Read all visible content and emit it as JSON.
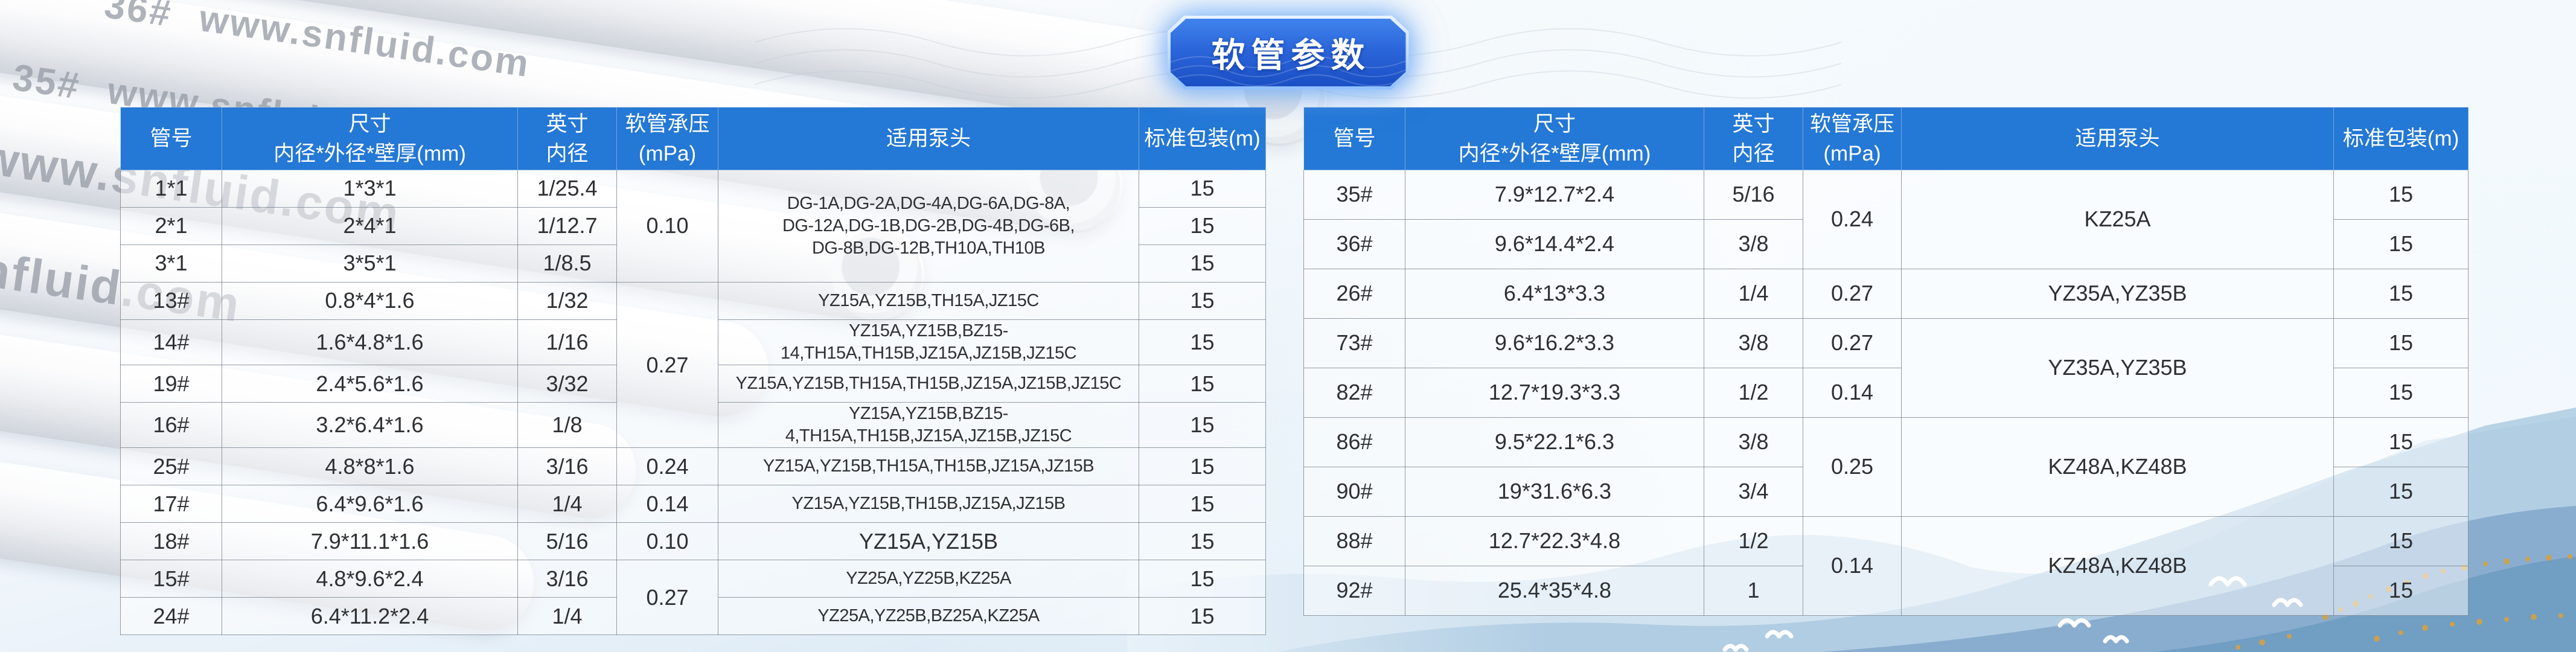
{
  "badge": {
    "label": "软管参数"
  },
  "watermarks": [
    "36#  www.snfluid.com",
    "35#  www.snfluid.com",
    "www.snfluid.com",
    "nfluid.com"
  ],
  "columns": [
    {
      "l1": "管号",
      "l2": ""
    },
    {
      "l1": "尺寸",
      "l2": "内径*外径*壁厚(mm)"
    },
    {
      "l1": "英寸",
      "l2": "内径"
    },
    {
      "l1": "软管承压",
      "l2": "(mPa)"
    },
    {
      "l1": "适用泵头",
      "l2": ""
    },
    {
      "l1": "标准包装(m)",
      "l2": ""
    }
  ],
  "left_table": {
    "rows": [
      [
        {
          "t": "1*1"
        },
        {
          "t": "1*3*1"
        },
        {
          "t": "1/25.4"
        },
        {
          "t": "0.10",
          "rs": 3
        },
        {
          "t": "DG-1A,DG-2A,DG-4A,DG-6A,DG-8A,\nDG-12A,DG-1B,DG-2B,DG-4B,DG-6B,\nDG-8B,DG-12B,TH10A,TH10B",
          "rs": 3
        },
        {
          "t": "15"
        }
      ],
      [
        {
          "t": "2*1"
        },
        {
          "t": "2*4*1"
        },
        {
          "t": "1/12.7"
        },
        {
          "t": "15"
        }
      ],
      [
        {
          "t": "3*1"
        },
        {
          "t": "3*5*1"
        },
        {
          "t": "1/8.5"
        },
        {
          "t": "15"
        }
      ],
      [
        {
          "t": "13#"
        },
        {
          "t": "0.8*4*1.6"
        },
        {
          "t": "1/32"
        },
        {
          "t": "0.27",
          "rs": 4
        },
        {
          "t": "YZ15A,YZ15B,TH15A,JZ15C"
        },
        {
          "t": "15"
        }
      ],
      [
        {
          "t": "14#"
        },
        {
          "t": "1.6*4.8*1.6"
        },
        {
          "t": "1/16"
        },
        {
          "t": "YZ15A,YZ15B,BZ15-14,TH15A,TH15B,JZ15A,JZ15B,JZ15C"
        },
        {
          "t": "15"
        }
      ],
      [
        {
          "t": "19#"
        },
        {
          "t": "2.4*5.6*1.6"
        },
        {
          "t": "3/32"
        },
        {
          "t": "YZ15A,YZ15B,TH15A,TH15B,JZ15A,JZ15B,JZ15C"
        },
        {
          "t": "15"
        }
      ],
      [
        {
          "t": "16#"
        },
        {
          "t": "3.2*6.4*1.6"
        },
        {
          "t": "1/8"
        },
        {
          "t": "YZ15A,YZ15B,BZ15-4,TH15A,TH15B,JZ15A,JZ15B,JZ15C"
        },
        {
          "t": "15"
        }
      ],
      [
        {
          "t": "25#"
        },
        {
          "t": "4.8*8*1.6"
        },
        {
          "t": "3/16"
        },
        {
          "t": "0.24"
        },
        {
          "t": "YZ15A,YZ15B,TH15A,TH15B,JZ15A,JZ15B"
        },
        {
          "t": "15"
        }
      ],
      [
        {
          "t": "17#"
        },
        {
          "t": "6.4*9.6*1.6"
        },
        {
          "t": "1/4"
        },
        {
          "t": "0.14"
        },
        {
          "t": "YZ15A,YZ15B,TH15B,JZ15A,JZ15B"
        },
        {
          "t": "15"
        }
      ],
      [
        {
          "t": "18#"
        },
        {
          "t": "7.9*11.1*1.6"
        },
        {
          "t": "5/16"
        },
        {
          "t": "0.10"
        },
        {
          "t": "YZ15A,YZ15B"
        },
        {
          "t": "15"
        }
      ],
      [
        {
          "t": "15#"
        },
        {
          "t": "4.8*9.6*2.4"
        },
        {
          "t": "3/16"
        },
        {
          "t": "0.27",
          "rs": 2
        },
        {
          "t": "YZ25A,YZ25B,KZ25A"
        },
        {
          "t": "15"
        }
      ],
      [
        {
          "t": "24#"
        },
        {
          "t": "6.4*11.2*2.4"
        },
        {
          "t": "1/4"
        },
        {
          "t": "YZ25A,YZ25B,BZ25A,KZ25A"
        },
        {
          "t": "15"
        }
      ]
    ]
  },
  "right_table": {
    "rows": [
      [
        {
          "t": "35#"
        },
        {
          "t": "7.9*12.7*2.4"
        },
        {
          "t": "5/16"
        },
        {
          "t": "0.24",
          "rs": 2
        },
        {
          "t": "KZ25A",
          "rs": 2
        },
        {
          "t": "15"
        }
      ],
      [
        {
          "t": "36#"
        },
        {
          "t": "9.6*14.4*2.4"
        },
        {
          "t": "3/8"
        },
        {
          "t": "15"
        }
      ],
      [
        {
          "t": "26#"
        },
        {
          "t": "6.4*13*3.3"
        },
        {
          "t": "1/4"
        },
        {
          "t": "0.27"
        },
        {
          "t": "YZ35A,YZ35B"
        },
        {
          "t": "15"
        }
      ],
      [
        {
          "t": "73#"
        },
        {
          "t": "9.6*16.2*3.3"
        },
        {
          "t": "3/8"
        },
        {
          "t": "0.27"
        },
        {
          "t": "YZ35A,YZ35B",
          "rs": 2
        },
        {
          "t": "15"
        }
      ],
      [
        {
          "t": "82#"
        },
        {
          "t": "12.7*19.3*3.3"
        },
        {
          "t": "1/2"
        },
        {
          "t": "0.14"
        },
        {
          "t": "15"
        }
      ],
      [
        {
          "t": "86#"
        },
        {
          "t": "9.5*22.1*6.3"
        },
        {
          "t": "3/8"
        },
        {
          "t": "0.25",
          "rs": 2
        },
        {
          "t": "KZ48A,KZ48B",
          "rs": 2
        },
        {
          "t": "15"
        }
      ],
      [
        {
          "t": "90#"
        },
        {
          "t": "19*31.6*6.3"
        },
        {
          "t": "3/4"
        },
        {
          "t": "15"
        }
      ],
      [
        {
          "t": "88#"
        },
        {
          "t": "12.7*22.3*4.8"
        },
        {
          "t": "1/2"
        },
        {
          "t": "0.14",
          "rs": 2
        },
        {
          "t": "KZ48A,KZ48B",
          "rs": 2
        },
        {
          "t": "15"
        }
      ],
      [
        {
          "t": "92#"
        },
        {
          "t": "25.4*35*4.8"
        },
        {
          "t": "1"
        },
        {
          "t": "15"
        }
      ]
    ]
  },
  "colors": {
    "header_blue": "#2478d6",
    "badge_blue_top": "#3f83ec",
    "badge_blue_bottom": "#1b4fc4",
    "cell_text": "#2e3033",
    "watermark_gray": "#989ea8"
  }
}
